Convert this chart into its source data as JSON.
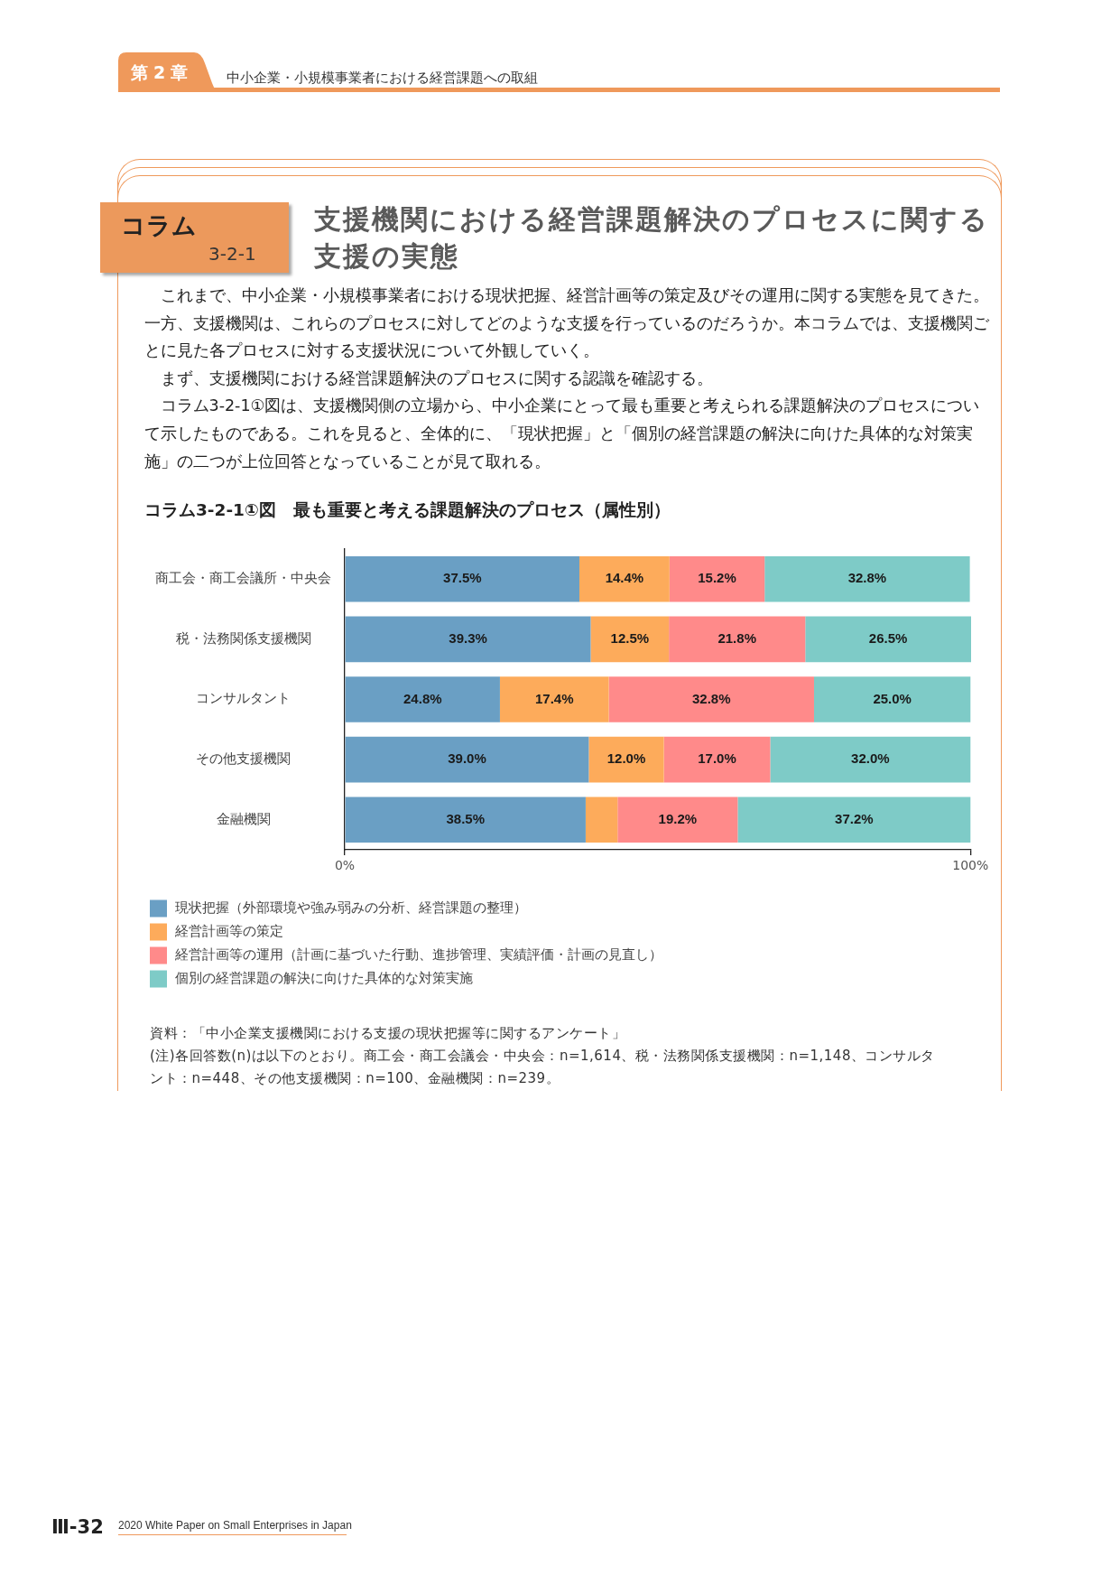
{
  "chart_data": {
    "type": "bar",
    "orientation": "horizontal",
    "stacked": true,
    "title": "コラム3-2-1①図　最も重要と考える課題解決のプロセス（属性別）",
    "categories": [
      "商工会・商工会議所・中央会",
      "税・法務関係支援機関",
      "コンサルタント",
      "その他支援機関",
      "金融機関"
    ],
    "series": [
      {
        "name": "現状把握（外部環境や強み弱みの分析、経営課題の整理）",
        "color": "#6a9fc4",
        "values": [
          37.5,
          39.3,
          24.8,
          39.0,
          38.5
        ],
        "value_labels": [
          "37.5%",
          "39.3%",
          "24.8%",
          "39.0%",
          "38.5%"
        ]
      },
      {
        "name": "経営計画等の策定",
        "color": "#fdab5b",
        "values": [
          14.4,
          12.5,
          17.4,
          12.0,
          5.1
        ],
        "value_labels": [
          "14.4%",
          "12.5%",
          "17.4%",
          "12.0%",
          null
        ]
      },
      {
        "name": "経営計画等の運用（計画に基づいた行動、進捗管理、実績評価・計画の見直し）",
        "color": "#ff8a8a",
        "values": [
          15.2,
          21.8,
          32.8,
          17.0,
          19.2
        ],
        "value_labels": [
          "15.2%",
          "21.8%",
          "32.8%",
          "17.0%",
          "19.2%"
        ]
      },
      {
        "name": "個別の経営課題の解決に向けた具体的な対策実施",
        "color": "#7ecbc7",
        "values": [
          32.8,
          26.5,
          25.0,
          32.0,
          37.2
        ],
        "value_labels": [
          "32.8%",
          "26.5%",
          "25.0%",
          "32.0%",
          "37.2%"
        ]
      }
    ],
    "xlim": [
      0,
      100.1
    ],
    "xticks": [
      {
        "value": 0,
        "label": "0%"
      },
      {
        "value": 100,
        "label": "100%"
      }
    ],
    "grid": false,
    "legend": "bottom",
    "annotations": [
      "第2章",
      "中小企業・小規模事業者における経営課題への取組",
      "コラム",
      "3-2-1",
      "支援機関における経営課題解決のプロセスに関する支援の実態",
      "これまで、中小企業・小規模事業者における現状把握、経営計画等の策定及びその運用に関する実態を見てきた。一方、支援機関は、これらのプロセスに対してどのような支援を行っているのだろうか。本コラムでは、支援機関ごとに見た各プロセスに対する支援状況について外観していく。",
      "まず、支援機関における経営課題解決のプロセスに関する認識を確認する。",
      "コラム3-2-1①図は、支援機関側の立場から、中小企業にとって最も重要と考えられる課題解決のプロセスについて示したものである。これを見ると、全体的に、「現状把握」と「個別の経営課題の解決に向けた具体的な対策実施」の二つが上位回答となっていることが見て取れる。",
      "資料：「中小企業支援機関における支援の現状把握等に関するアンケート」",
      "(注)各回答数(n)は以下のとおり。商工会・商工会議会・中央会：n=1,614、税・法務関係支援機関：n=1,148、コンサルタント：n=448、その他支援機関：n=100、金融機関：n=239。",
      "Ⅲ-32",
      "2020 White Paper on Small Enterprises in Japan"
    ]
  }
}
